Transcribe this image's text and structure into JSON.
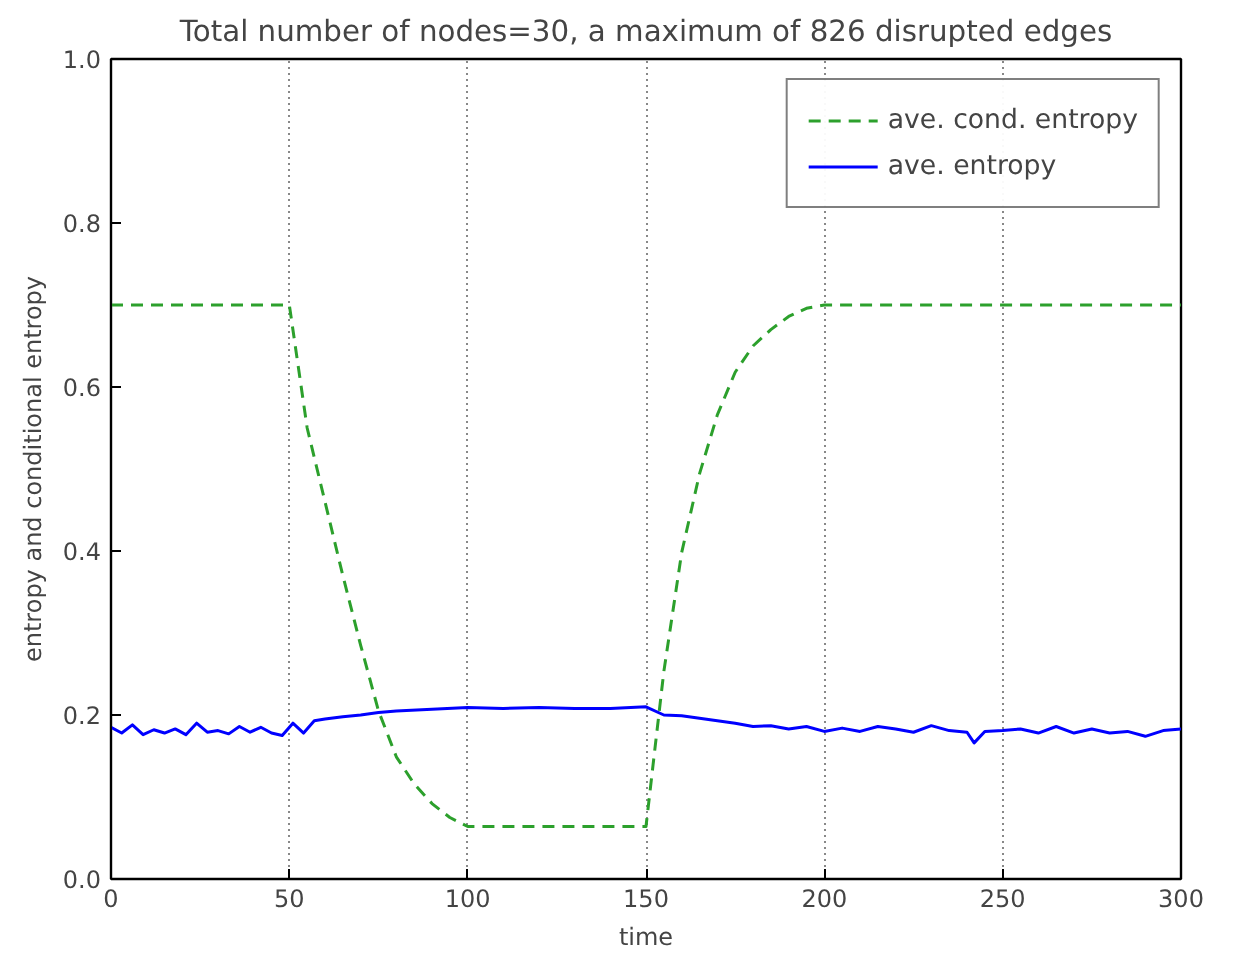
{
  "chart_data": {
    "type": "line",
    "title": "Total number of nodes=30, a maximum of 826 disrupted edges",
    "xlabel": "time",
    "ylabel": "entropy and conditional entropy",
    "xlim": [
      0,
      300
    ],
    "ylim": [
      0,
      1.0
    ],
    "xticks": [
      0,
      50,
      100,
      150,
      200,
      250,
      300
    ],
    "yticks": [
      {
        "value": 0,
        "label": "0.0"
      },
      {
        "value": 0.2,
        "label": "0.2"
      },
      {
        "value": 0.4,
        "label": "0.4"
      },
      {
        "value": 0.6,
        "label": "0.6"
      },
      {
        "value": 0.8,
        "label": "0.8"
      },
      {
        "value": 1.0,
        "label": "1.0"
      }
    ],
    "grid": "x",
    "legend": "top right",
    "series": [
      {
        "name": "ave. cond. entropy",
        "color": "#2ca02c",
        "line_style": "dashed",
        "x": [
          0,
          50,
          55,
          60,
          65,
          70,
          75,
          80,
          85,
          90,
          95,
          100,
          150,
          152,
          155,
          160,
          165,
          170,
          175,
          180,
          185,
          190,
          195,
          200,
          300
        ],
        "values": [
          0.7,
          0.7,
          0.55,
          0.46,
          0.37,
          0.285,
          0.205,
          0.149,
          0.116,
          0.092,
          0.075,
          0.064,
          0.064,
          0.14,
          0.253,
          0.398,
          0.494,
          0.566,
          0.618,
          0.65,
          0.67,
          0.686,
          0.696,
          0.7,
          0.7
        ]
      },
      {
        "name": "ave. entropy",
        "color": "#0000ff",
        "line_style": "solid",
        "x": [
          0,
          3,
          6,
          9,
          12,
          15,
          18,
          21,
          24,
          27,
          30,
          33,
          36,
          39,
          42,
          45,
          48,
          51,
          54,
          57,
          60,
          65,
          70,
          75,
          80,
          90,
          100,
          110,
          120,
          130,
          140,
          150,
          155,
          160,
          165,
          170,
          175,
          180,
          185,
          190,
          195,
          200,
          205,
          210,
          215,
          220,
          225,
          230,
          235,
          240,
          242,
          245,
          250,
          255,
          260,
          265,
          270,
          275,
          280,
          285,
          290,
          295,
          300
        ],
        "values": [
          0.185,
          0.178,
          0.188,
          0.176,
          0.182,
          0.178,
          0.183,
          0.176,
          0.19,
          0.179,
          0.181,
          0.177,
          0.186,
          0.179,
          0.185,
          0.178,
          0.175,
          0.19,
          0.178,
          0.193,
          0.195,
          0.198,
          0.2,
          0.203,
          0.205,
          0.207,
          0.209,
          0.208,
          0.209,
          0.208,
          0.208,
          0.21,
          0.2,
          0.199,
          0.196,
          0.193,
          0.19,
          0.186,
          0.187,
          0.183,
          0.186,
          0.18,
          0.184,
          0.18,
          0.186,
          0.183,
          0.179,
          0.187,
          0.181,
          0.179,
          0.166,
          0.18,
          0.181,
          0.183,
          0.178,
          0.186,
          0.178,
          0.183,
          0.178,
          0.18,
          0.174,
          0.181,
          0.183
        ]
      }
    ]
  }
}
